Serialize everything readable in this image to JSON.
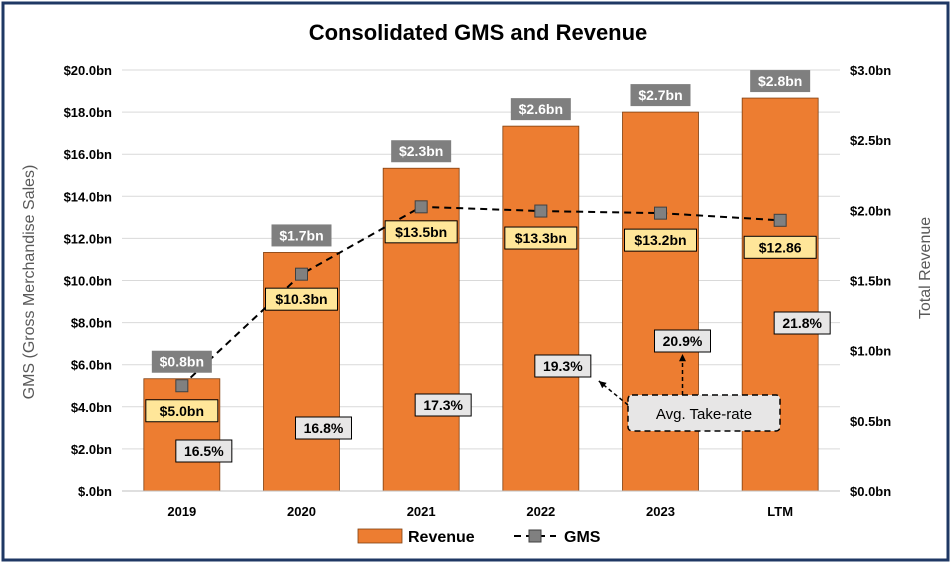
{
  "chart_data": {
    "type": "bar",
    "title": "Consolidated GMS and Revenue",
    "categories": [
      "2019",
      "2020",
      "2021",
      "2022",
      "2023",
      "LTM"
    ],
    "series": [
      {
        "name": "Revenue",
        "type": "bar",
        "axis": "right",
        "values": [
          0.8,
          1.7,
          2.3,
          2.6,
          2.7,
          2.8
        ],
        "labels": [
          "$0.8bn",
          "$1.7bn",
          "$2.3bn",
          "$2.6bn",
          "$2.7bn",
          "$2.8bn"
        ],
        "color": "#ED7D31"
      },
      {
        "name": "GMS",
        "type": "line",
        "axis": "left",
        "values": [
          5.0,
          10.3,
          13.5,
          13.3,
          13.2,
          12.86
        ],
        "labels": [
          "$5.0bn",
          "$10.3bn",
          "$13.5bn",
          "$13.3bn",
          "$13.2bn",
          "$12.86"
        ],
        "color": "#7F7F7F"
      }
    ],
    "take_rate": {
      "values": [
        16.5,
        16.8,
        17.3,
        19.3,
        20.9,
        21.8
      ],
      "labels": [
        "16.5%",
        "16.8%",
        "17.3%",
        "19.3%",
        "20.9%",
        "21.8%"
      ],
      "callout": "Avg. Take-rate"
    },
    "ylabel_left": "GMS (Gross Merchandise Sales)",
    "ylabel_right": "Total Revenue",
    "ylim_left": [
      0,
      20
    ],
    "ylim_right": [
      0,
      3
    ],
    "yticks_left": [
      "$.0bn",
      "$2.0bn",
      "$4.0bn",
      "$6.0bn",
      "$8.0bn",
      "$10.0bn",
      "$12.0bn",
      "$14.0bn",
      "$16.0bn",
      "$18.0bn",
      "$20.0bn"
    ],
    "yticks_right": [
      "$0.0bn",
      "$0.5bn",
      "$1.0bn",
      "$1.5bn",
      "$2.0bn",
      "$2.5bn",
      "$3.0bn"
    ],
    "grid": true,
    "legend_position": "bottom",
    "colors": {
      "bar": "#ED7D31",
      "gms_marker": "#808080",
      "gms_label_bg": "#FFE699",
      "revenue_label_bg": "#7F7F7F",
      "take_rate_bg": "#E7E6E6",
      "frame": "#1F3864"
    }
  }
}
